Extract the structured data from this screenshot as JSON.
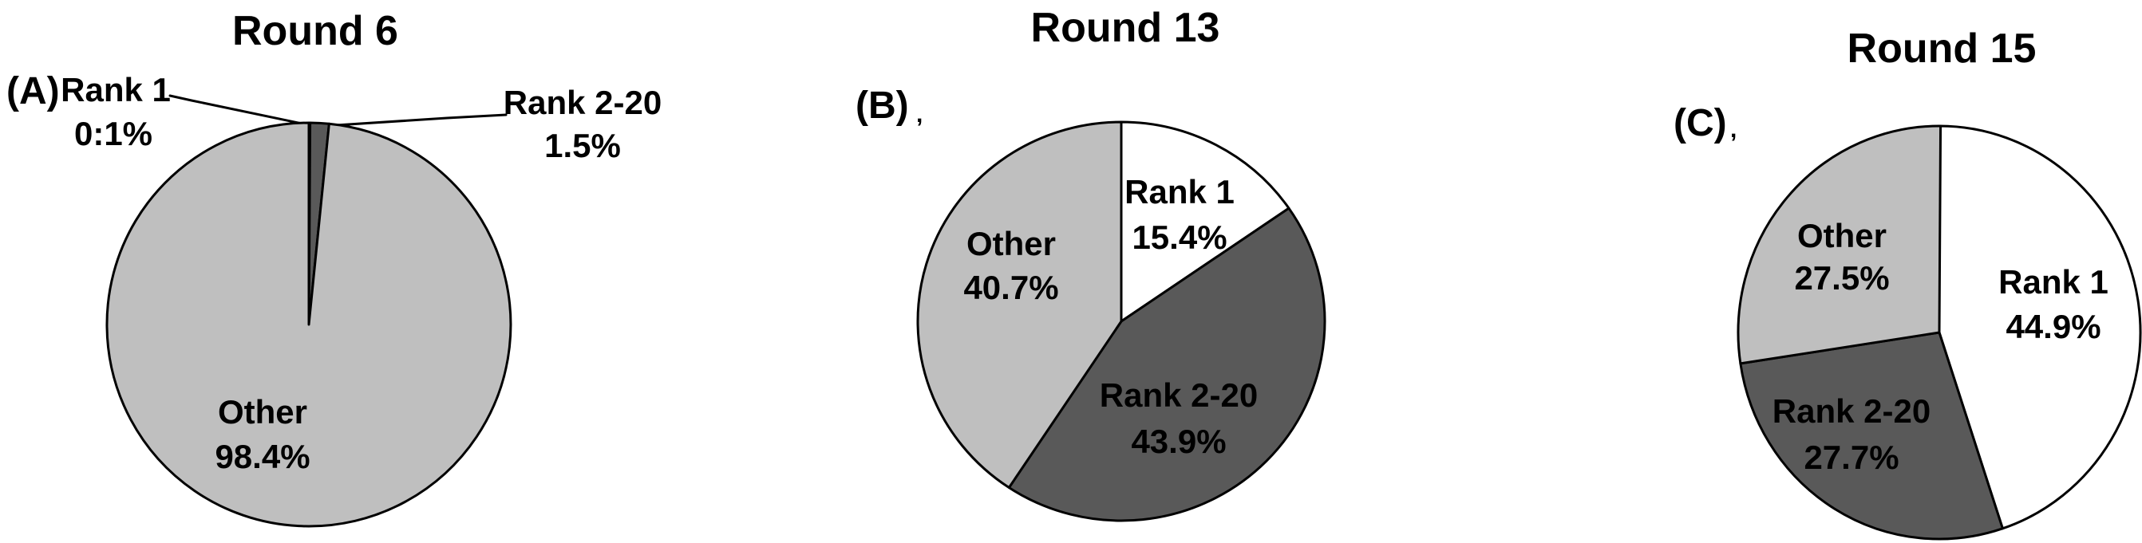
{
  "figure": {
    "background": "#ffffff",
    "text_color": "#000000",
    "slice_stroke_color": "#000000",
    "legend": "none"
  },
  "chart_data": [
    {
      "type": "pie",
      "panel_label": "(A)",
      "title": "Round 6",
      "categories": [
        "Rank 1",
        "Rank 2-20",
        "Other"
      ],
      "values": [
        0.1,
        1.5,
        98.4
      ],
      "percent_labels": [
        "0:1%",
        "1.5%",
        "98.4%"
      ],
      "colors": [
        "#ffffff",
        "#595959",
        "#bfbfbf"
      ],
      "start_angle_deg": 0,
      "direction": "clockwise",
      "label_placement": [
        "callout-left",
        "callout-right",
        "inside"
      ],
      "stray_mark": ""
    },
    {
      "type": "pie",
      "panel_label": "(B)",
      "title": "Round 13",
      "categories": [
        "Rank 1",
        "Rank 2-20",
        "Other"
      ],
      "values": [
        15.4,
        43.9,
        40.7
      ],
      "percent_labels": [
        "15.4%",
        "43.9%",
        "40.7%"
      ],
      "colors": [
        "#ffffff",
        "#595959",
        "#bfbfbf"
      ],
      "start_angle_deg": 0,
      "direction": "clockwise",
      "label_placement": [
        "inside",
        "inside",
        "inside"
      ],
      "stray_mark": ","
    },
    {
      "type": "pie",
      "panel_label": "(C)",
      "title": "Round 15",
      "categories": [
        "Rank 1",
        "Rank 2-20",
        "Other"
      ],
      "values": [
        44.9,
        27.7,
        27.5
      ],
      "percent_labels": [
        "44.9%",
        "27.7%",
        "27.5%"
      ],
      "colors": [
        "#ffffff",
        "#595959",
        "#bfbfbf"
      ],
      "start_angle_deg": 0,
      "direction": "clockwise",
      "label_placement": [
        "inside",
        "inside",
        "inside"
      ],
      "stray_mark": ","
    }
  ]
}
